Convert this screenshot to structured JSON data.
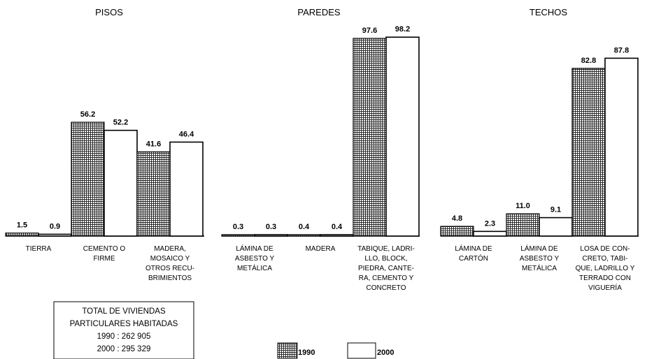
{
  "chart_data": [
    {
      "type": "bar",
      "title": "PISOS",
      "categories": [
        [
          "TIERRA"
        ],
        [
          "CEMENTO O",
          "FIRME"
        ],
        [
          "MADERA,",
          "MOSAICO Y",
          "OTROS RECU-",
          "BRIMIENTOS"
        ]
      ],
      "series": [
        {
          "name": "1990",
          "values": [
            1.5,
            56.2,
            41.6
          ]
        },
        {
          "name": "2000",
          "values": [
            0.9,
            52.2,
            46.4
          ]
        }
      ],
      "labels": [
        [
          "1.5",
          "56.2",
          "41.6"
        ],
        [
          "0.9",
          "52.2",
          "46.4"
        ]
      ],
      "ylim": [
        0,
        100
      ]
    },
    {
      "type": "bar",
      "title": "PAREDES",
      "categories": [
        [
          "LÁMINA DE",
          "ASBESTO Y",
          "METÁLICA"
        ],
        [
          "MADERA"
        ],
        [
          "TABIQUE, LADRI-",
          "LLO, BLOCK,",
          "PIEDRA, CANTE-",
          "RA, CEMENTO Y",
          "CONCRETO"
        ]
      ],
      "series": [
        {
          "name": "1990",
          "values": [
            0.3,
            0.4,
            97.6
          ]
        },
        {
          "name": "2000",
          "values": [
            0.3,
            0.4,
            98.2
          ]
        }
      ],
      "labels": [
        [
          "0.3",
          "0.4",
          "97.6"
        ],
        [
          "0.3",
          "0.4",
          "98.2"
        ]
      ],
      "ylim": [
        0,
        100
      ]
    },
    {
      "type": "bar",
      "title": "TECHOS",
      "categories": [
        [
          "LÁMINA DE",
          "CARTÓN"
        ],
        [
          "LÁMINA DE",
          "ASBESTO Y",
          "METÁLICA"
        ],
        [
          "LOSA DE CON-",
          "CRETO, TABI-",
          "QUE, LADRILLO Y",
          "TERRADO CON",
          "VIGUERÍA"
        ]
      ],
      "series": [
        {
          "name": "1990",
          "values": [
            4.8,
            11.0,
            82.8
          ]
        },
        {
          "name": "2000",
          "values": [
            2.3,
            9.1,
            87.8
          ]
        }
      ],
      "labels": [
        [
          "4.8",
          "11.0",
          "82.8"
        ],
        [
          "2.3",
          "9.1",
          "87.8"
        ]
      ],
      "ylim": [
        0,
        100
      ]
    }
  ],
  "legend": {
    "placement": "bottom-center",
    "items": [
      {
        "label": "1990",
        "style": "crosshatch"
      },
      {
        "label": "2000",
        "style": "white"
      }
    ]
  },
  "totals_box": {
    "lines": [
      "TOTAL DE VIVIENDAS",
      "PARTICULARES HABITADAS",
      "1990 : 262 905",
      "2000 : 295 329"
    ]
  },
  "colors": {
    "series_1990": "#3a3a3a",
    "series_2000": "#ffffff",
    "stroke": "#000000"
  }
}
